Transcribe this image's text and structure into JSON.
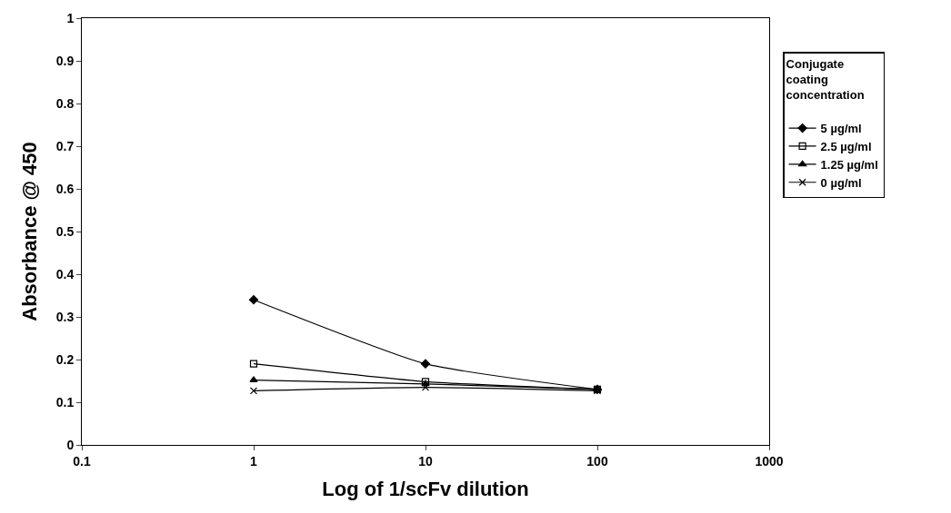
{
  "chart_data": {
    "type": "line",
    "xlabel": "Log of 1/scFv dilution",
    "ylabel": "Absorbance @ 450",
    "legend_title": "Conjugate coating concentration",
    "log": "x",
    "xlim": [
      0.1,
      1000
    ],
    "xticks": [
      0.1,
      1,
      10,
      100,
      1000
    ],
    "ylim": [
      0,
      1
    ],
    "yticks": [
      0,
      0.1,
      0.2,
      0.3,
      0.4,
      0.5,
      0.6,
      0.7,
      0.8,
      0.9,
      1
    ],
    "legend": "right",
    "x": [
      1,
      10,
      100
    ],
    "series": [
      {
        "name": "5 µg/ml",
        "color": "#000000",
        "marker": "diamond",
        "values": [
          0.34,
          0.19,
          0.13
        ]
      },
      {
        "name": "2.5 µg/ml",
        "color": "#000000",
        "marker": "square",
        "values": [
          0.19,
          0.148,
          0.13
        ]
      },
      {
        "name": "1.25 µg/ml",
        "color": "#000000",
        "marker": "triangle",
        "values": [
          0.152,
          0.143,
          0.13
        ]
      },
      {
        "name": "0 µg/ml",
        "color": "#000000",
        "marker": "cross",
        "values": [
          0.127,
          0.135,
          0.127
        ]
      }
    ]
  }
}
